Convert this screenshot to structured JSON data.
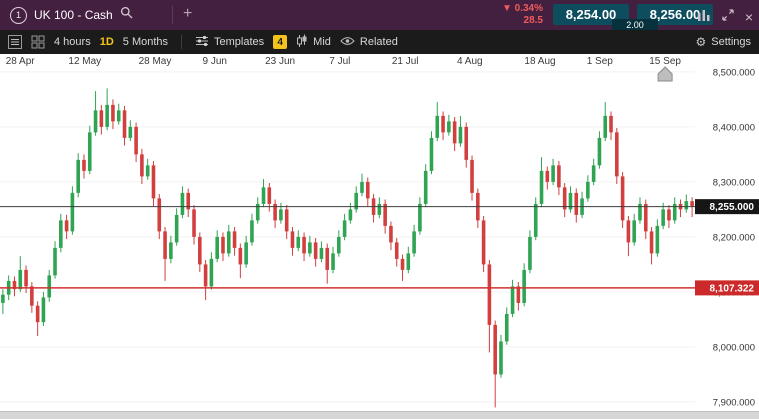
{
  "topbar": {
    "tab_number": "1",
    "instrument": "UK 100 - Cash",
    "add_tab": "+",
    "change_arrow": "▼",
    "change_percent": "0.34%",
    "change_points": "28.5",
    "sell_price": "8,254.00",
    "buy_price": "8,256.00",
    "spread": "2.00",
    "close_glyph": "×",
    "colors": {
      "bar_bg": "#431f40",
      "price_box_bg": "#0d4d5e",
      "change_red": "#f25b5b"
    }
  },
  "toolbar": {
    "interval": "4 hours",
    "day": "1D",
    "range": "5 Months",
    "templates": "Templates",
    "badge": "4",
    "price_type": "Mid",
    "related": "Related",
    "settings": "Settings",
    "gear_glyph": "⚙",
    "accent_yellow": "#f4c41d"
  },
  "chart_data": {
    "type": "candlestick",
    "title": "UK 100 - Cash, 4 hours, 5 Months",
    "x_labels": [
      {
        "label": "28 Apr",
        "f": 0.029
      },
      {
        "label": "12 May",
        "f": 0.122
      },
      {
        "label": "28 May",
        "f": 0.223
      },
      {
        "label": "9 Jun",
        "f": 0.309
      },
      {
        "label": "23 Jun",
        "f": 0.403
      },
      {
        "label": "7 Jul",
        "f": 0.489
      },
      {
        "label": "21 Jul",
        "f": 0.583
      },
      {
        "label": "4 Aug",
        "f": 0.676
      },
      {
        "label": "18 Aug",
        "f": 0.777
      },
      {
        "label": "1 Sep",
        "f": 0.863
      },
      {
        "label": "15 Sep",
        "f": 0.957
      }
    ],
    "marker_f": 0.957,
    "y_ticks": [
      {
        "price": 8500,
        "label": "8,500.000"
      },
      {
        "price": 8400,
        "label": "8,400.000"
      },
      {
        "price": 8300,
        "label": "8,300.000"
      },
      {
        "price": 8200,
        "label": "8,200.000"
      },
      {
        "price": 8100,
        "label": "8,100.000"
      },
      {
        "price": 8000,
        "label": "8,000.000"
      },
      {
        "price": 7900,
        "label": "7,900.000"
      }
    ],
    "y_range_top": 8507,
    "y_range_bottom": 7889,
    "current_price": 8255.0,
    "current_price_label": "8,255.000",
    "support_price": 8107.322,
    "support_price_label": "8,107.322",
    "up_color": "#2fa452",
    "down_color": "#d23f3f",
    "candles": [
      [
        8080,
        8105,
        8060,
        8095
      ],
      [
        8095,
        8130,
        8085,
        8120
      ],
      [
        8120,
        8128,
        8092,
        8105
      ],
      [
        8105,
        8165,
        8100,
        8140
      ],
      [
        8140,
        8148,
        8098,
        8110
      ],
      [
        8110,
        8118,
        8062,
        8075
      ],
      [
        8075,
        8083,
        8020,
        8045
      ],
      [
        8045,
        8100,
        8038,
        8090
      ],
      [
        8090,
        8140,
        8082,
        8130
      ],
      [
        8130,
        8192,
        8124,
        8180
      ],
      [
        8180,
        8242,
        8172,
        8230
      ],
      [
        8230,
        8240,
        8196,
        8210
      ],
      [
        8210,
        8292,
        8204,
        8280
      ],
      [
        8280,
        8352,
        8272,
        8340
      ],
      [
        8340,
        8350,
        8306,
        8320
      ],
      [
        8320,
        8402,
        8314,
        8390
      ],
      [
        8390,
        8465,
        8384,
        8430
      ],
      [
        8430,
        8440,
        8386,
        8400
      ],
      [
        8400,
        8470,
        8394,
        8440
      ],
      [
        8440,
        8450,
        8396,
        8410
      ],
      [
        8410,
        8442,
        8404,
        8430
      ],
      [
        8430,
        8438,
        8366,
        8380
      ],
      [
        8380,
        8412,
        8374,
        8400
      ],
      [
        8400,
        8408,
        8336,
        8350
      ],
      [
        8350,
        8360,
        8296,
        8310
      ],
      [
        8310,
        8342,
        8304,
        8330
      ],
      [
        8330,
        8338,
        8256,
        8270
      ],
      [
        8270,
        8278,
        8196,
        8210
      ],
      [
        8210,
        8218,
        8120,
        8160
      ],
      [
        8160,
        8202,
        8152,
        8190
      ],
      [
        8190,
        8252,
        8184,
        8240
      ],
      [
        8240,
        8292,
        8234,
        8280
      ],
      [
        8280,
        8288,
        8236,
        8250
      ],
      [
        8250,
        8258,
        8186,
        8200
      ],
      [
        8200,
        8208,
        8136,
        8150
      ],
      [
        8150,
        8158,
        8085,
        8110
      ],
      [
        8110,
        8172,
        8104,
        8160
      ],
      [
        8160,
        8212,
        8154,
        8200
      ],
      [
        8200,
        8208,
        8156,
        8170
      ],
      [
        8170,
        8222,
        8164,
        8210
      ],
      [
        8210,
        8218,
        8166,
        8180
      ],
      [
        8180,
        8188,
        8125,
        8150
      ],
      [
        8150,
        8202,
        8144,
        8190
      ],
      [
        8190,
        8242,
        8184,
        8230
      ],
      [
        8230,
        8272,
        8224,
        8260
      ],
      [
        8260,
        8305,
        8254,
        8290
      ],
      [
        8290,
        8298,
        8246,
        8260
      ],
      [
        8260,
        8268,
        8216,
        8230
      ],
      [
        8230,
        8262,
        8224,
        8250
      ],
      [
        8250,
        8258,
        8196,
        8210
      ],
      [
        8210,
        8218,
        8166,
        8180
      ],
      [
        8180,
        8212,
        8174,
        8200
      ],
      [
        8200,
        8208,
        8156,
        8170
      ],
      [
        8170,
        8202,
        8164,
        8190
      ],
      [
        8190,
        8198,
        8146,
        8160
      ],
      [
        8160,
        8192,
        8154,
        8180
      ],
      [
        8180,
        8188,
        8115,
        8140
      ],
      [
        8140,
        8182,
        8134,
        8170
      ],
      [
        8170,
        8212,
        8164,
        8200
      ],
      [
        8200,
        8242,
        8194,
        8230
      ],
      [
        8230,
        8262,
        8224,
        8250
      ],
      [
        8250,
        8292,
        8244,
        8280
      ],
      [
        8280,
        8315,
        8274,
        8300
      ],
      [
        8300,
        8308,
        8256,
        8270
      ],
      [
        8270,
        8278,
        8226,
        8240
      ],
      [
        8240,
        8272,
        8234,
        8260
      ],
      [
        8260,
        8268,
        8206,
        8220
      ],
      [
        8220,
        8228,
        8176,
        8190
      ],
      [
        8190,
        8198,
        8146,
        8160
      ],
      [
        8160,
        8168,
        8120,
        8140
      ],
      [
        8140,
        8182,
        8134,
        8170
      ],
      [
        8170,
        8222,
        8164,
        8210
      ],
      [
        8210,
        8272,
        8204,
        8260
      ],
      [
        8260,
        8332,
        8254,
        8320
      ],
      [
        8320,
        8392,
        8314,
        8380
      ],
      [
        8380,
        8445,
        8374,
        8420
      ],
      [
        8420,
        8428,
        8376,
        8390
      ],
      [
        8390,
        8422,
        8384,
        8410
      ],
      [
        8410,
        8418,
        8356,
        8370
      ],
      [
        8370,
        8420,
        8364,
        8400
      ],
      [
        8400,
        8408,
        8326,
        8340
      ],
      [
        8340,
        8348,
        8266,
        8280
      ],
      [
        8280,
        8288,
        8216,
        8230
      ],
      [
        8230,
        8238,
        8136,
        8150
      ],
      [
        8150,
        8158,
        7990,
        8040
      ],
      [
        8040,
        8048,
        7890,
        7950
      ],
      [
        7950,
        8022,
        7944,
        8010
      ],
      [
        8010,
        8072,
        8004,
        8060
      ],
      [
        8060,
        8122,
        8054,
        8110
      ],
      [
        8110,
        8118,
        8066,
        8080
      ],
      [
        8080,
        8152,
        8074,
        8140
      ],
      [
        8140,
        8212,
        8134,
        8200
      ],
      [
        8200,
        8272,
        8194,
        8260
      ],
      [
        8260,
        8345,
        8254,
        8320
      ],
      [
        8320,
        8328,
        8286,
        8300
      ],
      [
        8300,
        8342,
        8294,
        8330
      ],
      [
        8330,
        8338,
        8276,
        8290
      ],
      [
        8290,
        8298,
        8236,
        8250
      ],
      [
        8250,
        8292,
        8244,
        8280
      ],
      [
        8280,
        8288,
        8226,
        8240
      ],
      [
        8240,
        8282,
        8234,
        8270
      ],
      [
        8270,
        8312,
        8264,
        8300
      ],
      [
        8300,
        8342,
        8294,
        8330
      ],
      [
        8330,
        8392,
        8324,
        8380
      ],
      [
        8380,
        8445,
        8374,
        8420
      ],
      [
        8420,
        8428,
        8376,
        8390
      ],
      [
        8390,
        8398,
        8296,
        8310
      ],
      [
        8310,
        8318,
        8216,
        8230
      ],
      [
        8230,
        8238,
        8165,
        8190
      ],
      [
        8190,
        8242,
        8184,
        8230
      ],
      [
        8230,
        8272,
        8224,
        8260
      ],
      [
        8260,
        8268,
        8196,
        8210
      ],
      [
        8210,
        8218,
        8150,
        8170
      ],
      [
        8170,
        8232,
        8164,
        8220
      ],
      [
        8220,
        8262,
        8214,
        8250
      ],
      [
        8250,
        8258,
        8216,
        8230
      ],
      [
        8230,
        8272,
        8224,
        8260
      ],
      [
        8260,
        8268,
        8236,
        8250
      ],
      [
        8250,
        8277,
        8244,
        8265
      ],
      [
        8265,
        8272,
        8236,
        8256
      ]
    ]
  }
}
